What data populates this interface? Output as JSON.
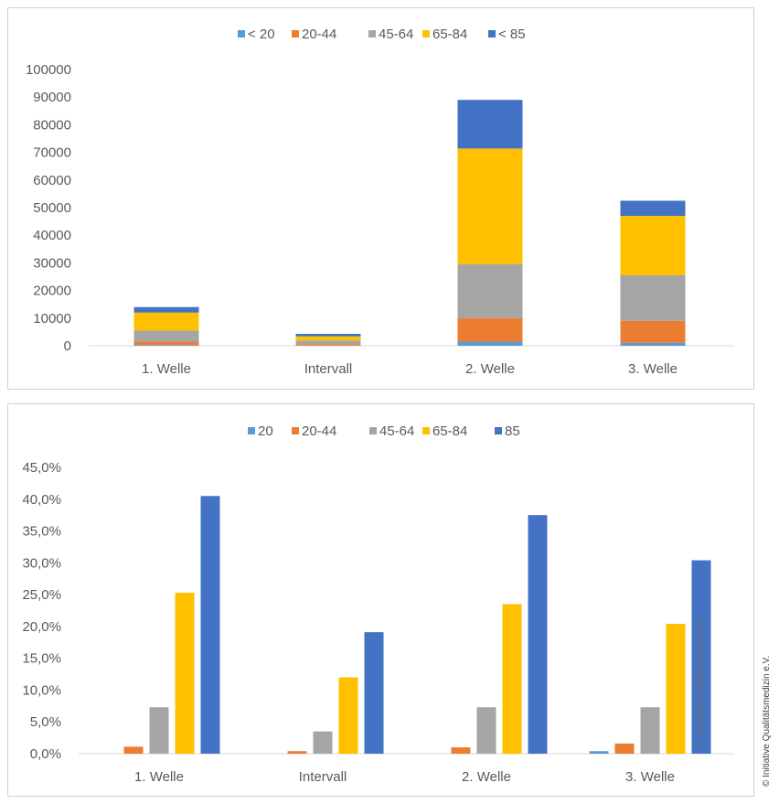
{
  "colors": {
    "series": [
      "#5B9BD5",
      "#ED7D31",
      "#A5A5A5",
      "#FFC000",
      "#4472C4"
    ],
    "axis": "#d9d9d9",
    "text": "#595959"
  },
  "copyright": "© Initiative Qualitätsmedizin e.V.",
  "watermark": "© Initiative Qualitätsmedizin e.V.",
  "chart_data": [
    {
      "type": "bar",
      "stacked": true,
      "legend": "top-center",
      "categories": [
        "1. Welle",
        "Intervall",
        "2. Welle",
        "3. Welle"
      ],
      "ylim": [
        0,
        100000
      ],
      "yticks": [
        "0",
        "10000",
        "20000",
        "30000",
        "40000",
        "50000",
        "60000",
        "70000",
        "80000",
        "90000",
        "100000"
      ],
      "ytick_values": [
        0,
        10000,
        20000,
        30000,
        40000,
        50000,
        60000,
        70000,
        80000,
        90000,
        100000
      ],
      "grid": false,
      "series": [
        {
          "name": "< 20",
          "values": [
            300,
            100,
            1500,
            1100
          ]
        },
        {
          "name": "20-44",
          "values": [
            1200,
            500,
            8500,
            7900
          ]
        },
        {
          "name": "45-64",
          "values": [
            4000,
            1300,
            19500,
            16500
          ]
        },
        {
          "name": "65-84",
          "values": [
            6500,
            1500,
            41900,
            21500
          ]
        },
        {
          "name": "< 85",
          "values": [
            2000,
            900,
            17600,
            5500
          ]
        }
      ]
    },
    {
      "type": "bar",
      "stacked": false,
      "legend": "top-center",
      "categories": [
        "1. Welle",
        "Intervall",
        "2. Welle",
        "3. Welle"
      ],
      "ylim": [
        0,
        45
      ],
      "yticks": [
        "0,0%",
        "5,0%",
        "10,0%",
        "15,0%",
        "20,0%",
        "25,0%",
        "30,0%",
        "35,0%",
        "40,0%",
        "45,0%"
      ],
      "ytick_values": [
        0,
        5,
        10,
        15,
        20,
        25,
        30,
        35,
        40,
        45
      ],
      "grid": false,
      "series": [
        {
          "name": "20",
          "values": [
            0.0,
            0.0,
            0.0,
            0.4
          ]
        },
        {
          "name": "20-44",
          "values": [
            1.1,
            0.4,
            1.0,
            1.6
          ]
        },
        {
          "name": "45-64",
          "values": [
            7.3,
            3.5,
            7.3,
            7.3
          ]
        },
        {
          "name": "65-84",
          "values": [
            25.3,
            12.0,
            23.5,
            20.4
          ]
        },
        {
          "name": "85",
          "values": [
            40.5,
            19.1,
            37.5,
            30.4
          ]
        }
      ]
    }
  ]
}
